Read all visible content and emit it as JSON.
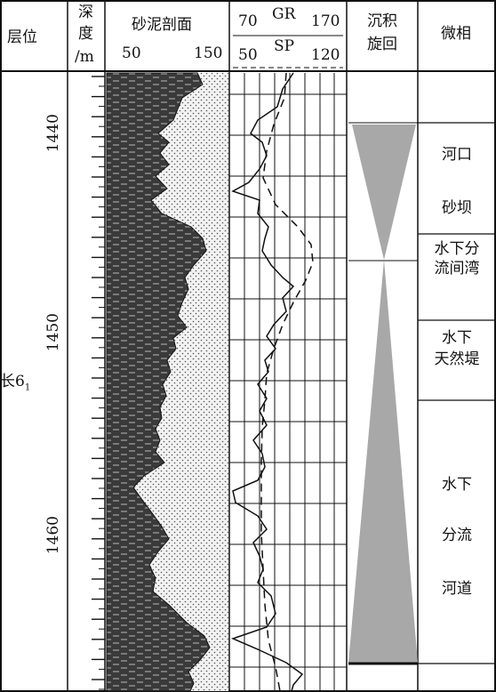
{
  "header": {
    "layer": "层位",
    "depth_line1": "深",
    "depth_line2": "度",
    "depth_unit": "/m",
    "lith_title": "砂泥剖面",
    "lith_min": "50",
    "lith_max": "150",
    "gr_min": "70",
    "gr_label": "GR",
    "gr_max": "170",
    "sp_min": "50",
    "sp_label": "SP",
    "sp_max": "120",
    "cycle_line1": "沉积",
    "cycle_line2": "旋回",
    "facies": "微相"
  },
  "layer_name": "长6",
  "layer_sub": "1",
  "depth_labels": [
    "1440",
    "1450",
    "1460"
  ],
  "facies_labels": [
    {
      "line1": "河口",
      "line2": "砂坝"
    },
    {
      "line1": "水下分",
      "line2": "流间湾"
    },
    {
      "line1": "水下",
      "line2": "天然堤"
    },
    {
      "line1": "水下",
      "line2": "分流",
      "line3": "河道"
    }
  ],
  "colors": {
    "sand_fill": "#d9d9d9",
    "mud_fill": "#3a3a3a",
    "cycle_fill": "#a8a8a8",
    "line": "#111111"
  }
}
